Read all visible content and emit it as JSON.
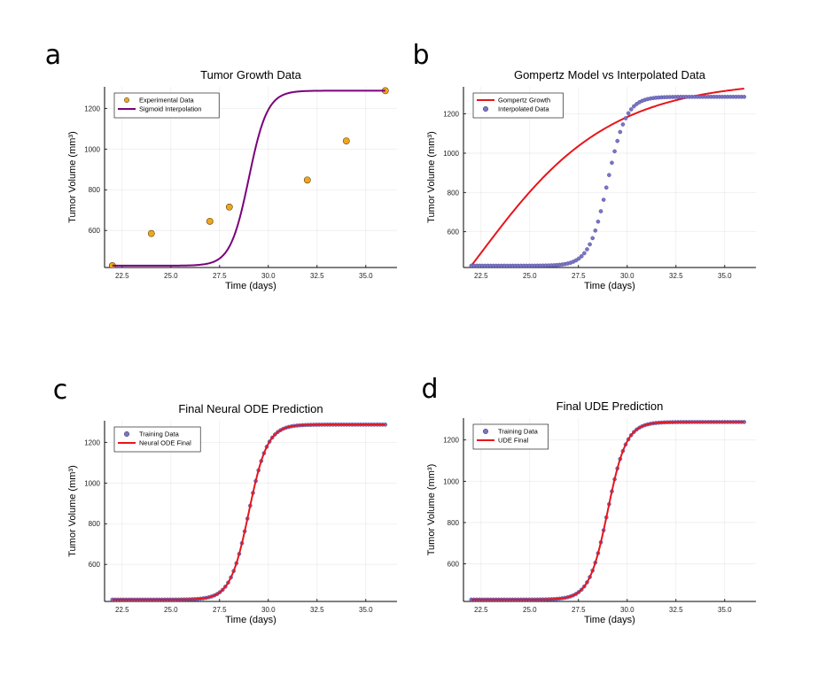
{
  "figure": {
    "colors": {
      "orange": "#f1a51e",
      "purple": "#7b007b",
      "red": "#e8141a",
      "blue": "#7a74c6"
    }
  },
  "chart_data": [
    {
      "panel": "a",
      "type": "scatter",
      "title": "Tumor Growth Data",
      "xlabel": "Time (days)",
      "ylabel": "Tumor Volume (mm³)",
      "xlim": [
        21.6,
        36.6
      ],
      "ylim": [
        418,
        1306
      ],
      "xticks": [
        "22.5",
        "25.0",
        "27.5",
        "30.0",
        "32.5",
        "35.0"
      ],
      "yticks": [
        "600",
        "800",
        "1000",
        "1200"
      ],
      "grid": true,
      "legend_position": "top-left",
      "series": [
        {
          "name": "Experimental Data",
          "kind": "scatter",
          "color": "#f1a51e",
          "x": [
            22,
            24,
            27,
            28,
            32,
            34,
            36
          ],
          "y": [
            427,
            585,
            645,
            715,
            848,
            1040,
            1287
          ]
        },
        {
          "name": "Sigmoid Interpolation",
          "kind": "sigmoid",
          "color": "#7b007b",
          "x_start": 22,
          "x_end": 36,
          "params": {
            "L": 427,
            "U": 1287,
            "x0": 29,
            "k": 2.1
          }
        }
      ]
    },
    {
      "panel": "b",
      "type": "line",
      "title": "Gompertz Model vs Interpolated Data",
      "xlabel": "Time (days)",
      "ylabel": "Tumor Volume (mm³)",
      "xlim": [
        21.6,
        36.6
      ],
      "ylim": [
        418,
        1338
      ],
      "xticks": [
        "22.5",
        "25.0",
        "27.5",
        "30.0",
        "32.5",
        "35.0"
      ],
      "yticks": [
        "600",
        "800",
        "1000",
        "1200"
      ],
      "grid": true,
      "legend_position": "top-left",
      "series": [
        {
          "name": "Gompertz Growth",
          "kind": "gompertz",
          "color": "#e8141a",
          "x_start": 22,
          "x_end": 36,
          "params": {
            "V0": 427,
            "K": 1370,
            "r": 0.26
          }
        },
        {
          "name": "Interpolated Data",
          "kind": "sigmoid-points",
          "color": "#7a74c6",
          "x_start": 22,
          "x_end": 36,
          "n": 100,
          "params": {
            "L": 427,
            "U": 1287,
            "x0": 29,
            "k": 2.1
          }
        }
      ]
    },
    {
      "panel": "c",
      "type": "line",
      "title": "Final Neural ODE Prediction",
      "xlabel": "Time (days)",
      "ylabel": "Tumor Volume (mm³)",
      "xlim": [
        21.6,
        36.6
      ],
      "ylim": [
        418,
        1306
      ],
      "xticks": [
        "22.5",
        "25.0",
        "27.5",
        "30.0",
        "32.5",
        "35.0"
      ],
      "yticks": [
        "600",
        "800",
        "1000",
        "1200"
      ],
      "grid": true,
      "legend_position": "top-left",
      "series": [
        {
          "name": "Training Data",
          "kind": "sigmoid-points",
          "color": "#7a74c6",
          "x_start": 22,
          "x_end": 36,
          "n": 100,
          "params": {
            "L": 427,
            "U": 1287,
            "x0": 29,
            "k": 2.1
          }
        },
        {
          "name": "Neural ODE Final",
          "kind": "sigmoid",
          "color": "#e8141a",
          "x_start": 22,
          "x_end": 36,
          "params": {
            "L": 427,
            "U": 1287,
            "x0": 29,
            "k": 2.1
          }
        }
      ]
    },
    {
      "panel": "d",
      "type": "line",
      "title": "Final UDE Prediction",
      "xlabel": "Time (days)",
      "ylabel": "Tumor Volume (mm³)",
      "xlim": [
        21.6,
        36.6
      ],
      "ylim": [
        418,
        1306
      ],
      "xticks": [
        "22.5",
        "25.0",
        "27.5",
        "30.0",
        "32.5",
        "35.0"
      ],
      "yticks": [
        "600",
        "800",
        "1000",
        "1200"
      ],
      "grid": true,
      "legend_position": "top-left",
      "series": [
        {
          "name": "Training Data",
          "kind": "sigmoid-points",
          "color": "#7a74c6",
          "x_start": 22,
          "x_end": 36,
          "n": 100,
          "params": {
            "L": 427,
            "U": 1287,
            "x0": 29,
            "k": 2.1
          }
        },
        {
          "name": "UDE Final",
          "kind": "sigmoid",
          "color": "#e8141a",
          "x_start": 22,
          "x_end": 36,
          "params": {
            "L": 427,
            "U": 1287,
            "x0": 29,
            "k": 2.1
          }
        }
      ]
    }
  ]
}
